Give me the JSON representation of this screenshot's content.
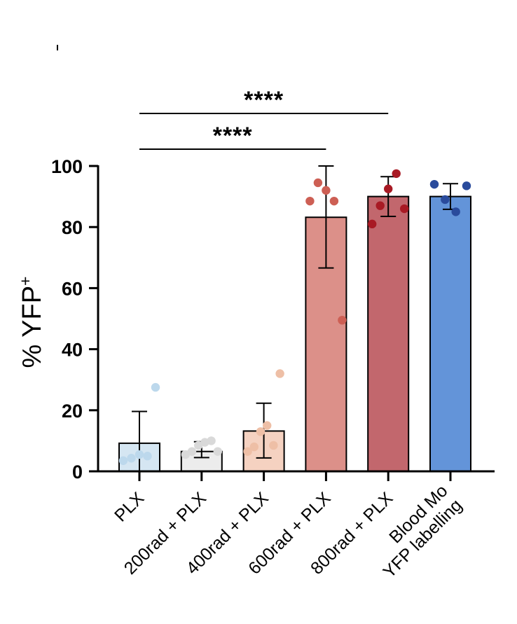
{
  "chart_data": {
    "type": "bar",
    "title": "",
    "xlabel": "",
    "ylabel": "% YFP",
    "ylabel_superscript": "+",
    "ylim": [
      0,
      100
    ],
    "yticks": [
      "0",
      "20",
      "40",
      "60",
      "80",
      "100"
    ],
    "categories": [
      {
        "label": "PLX",
        "lines": [
          "PLX"
        ]
      },
      {
        "label": "200rad + PLX",
        "lines": [
          "200rad + PLX"
        ]
      },
      {
        "label": "400rad + PLX",
        "lines": [
          "400rad + PLX"
        ]
      },
      {
        "label": "600rad + PLX",
        "lines": [
          "600rad + PLX"
        ]
      },
      {
        "label": "800rad + PLX",
        "lines": [
          "800rad + PLX"
        ]
      },
      {
        "label": "Blood Mo YFP labelling",
        "lines": [
          "Blood Mo",
          "YFP labelling"
        ]
      }
    ],
    "values": [
      9.2,
      6.5,
      13.2,
      83.2,
      90.0,
      90.0
    ],
    "error_lower": [
      0,
      4.5,
      4.4,
      66.6,
      83.5,
      85.8
    ],
    "error_upper": [
      19.6,
      9.7,
      22.3,
      100.0,
      96.5,
      94.2
    ],
    "points": [
      [
        3.5,
        4.3,
        5.5,
        5.0,
        27.5
      ],
      [
        5.5,
        6.5,
        8.5,
        9.5,
        10.0,
        6.5
      ],
      [
        6.5,
        8.0,
        13.0,
        15.0,
        8.5,
        32.0
      ],
      [
        88.5,
        94.5,
        92.0,
        88.5,
        49.5
      ],
      [
        81.0,
        87.0,
        92.5,
        97.5,
        86.0
      ],
      [
        94.0,
        89.0,
        85.0,
        93.5
      ]
    ],
    "bar_fill": [
      "#d5e6f2",
      "#ececec",
      "#f5d2c1",
      "#dc9089",
      "#c2676d",
      "#6394d9"
    ],
    "point_color": [
      "#bcd8ec",
      "#d9d9d9",
      "#eebfa6",
      "#cd5f54",
      "#a81a24",
      "#2a4b9c"
    ],
    "significance": [
      {
        "from": 0,
        "to": 4,
        "label": "****"
      },
      {
        "from": 0,
        "to": 3,
        "label": "****"
      }
    ]
  }
}
